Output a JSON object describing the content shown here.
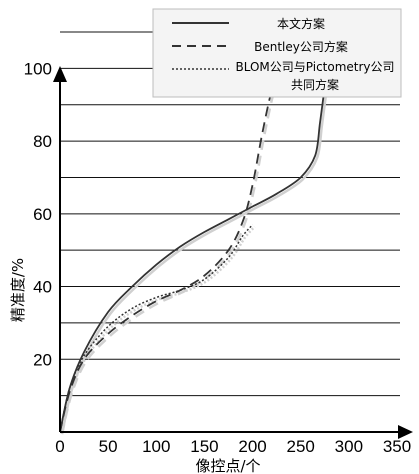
{
  "chart_data": {
    "type": "line",
    "xlabel": "像控点/个",
    "ylabel": "精准度/%",
    "xlim": [
      0,
      350
    ],
    "ylim": [
      0,
      110
    ],
    "xticks": [
      0,
      50,
      100,
      150,
      200,
      250,
      300,
      350
    ],
    "yticks": [
      20,
      40,
      60,
      80,
      100
    ],
    "grid": "horizontal",
    "legend_position": "top-right",
    "series": [
      {
        "name": "本文方案",
        "style": "solid",
        "color": "#333333",
        "x": [
          0,
          10,
          25,
          50,
          75,
          100,
          125,
          150,
          175,
          200,
          225,
          250,
          265,
          270,
          275,
          280,
          285,
          290,
          300,
          310
        ],
        "y": [
          0,
          12,
          22,
          33,
          40,
          46,
          51,
          55,
          58.5,
          62,
          65.5,
          70,
          76,
          85,
          95,
          104,
          107,
          108,
          108,
          108
        ]
      },
      {
        "name": "Bentley公司方案",
        "style": "dashed",
        "color": "#333333",
        "x": [
          0,
          10,
          25,
          50,
          75,
          100,
          125,
          150,
          175,
          190,
          200,
          210,
          220,
          230,
          240,
          255,
          262
        ],
        "y": [
          0,
          11,
          20,
          27,
          32,
          36,
          39,
          43,
          50,
          58,
          68,
          82,
          94,
          101,
          105,
          108,
          108
        ]
      },
      {
        "name": "BLOM公司与Pictometry公司共同方案",
        "style": "dotted",
        "color": "#333333",
        "x": [
          0,
          10,
          25,
          50,
          75,
          100,
          125,
          150,
          175,
          190,
          200
        ],
        "y": [
          0,
          12,
          21,
          29,
          34,
          37,
          39,
          42,
          48,
          54,
          57
        ]
      }
    ]
  }
}
